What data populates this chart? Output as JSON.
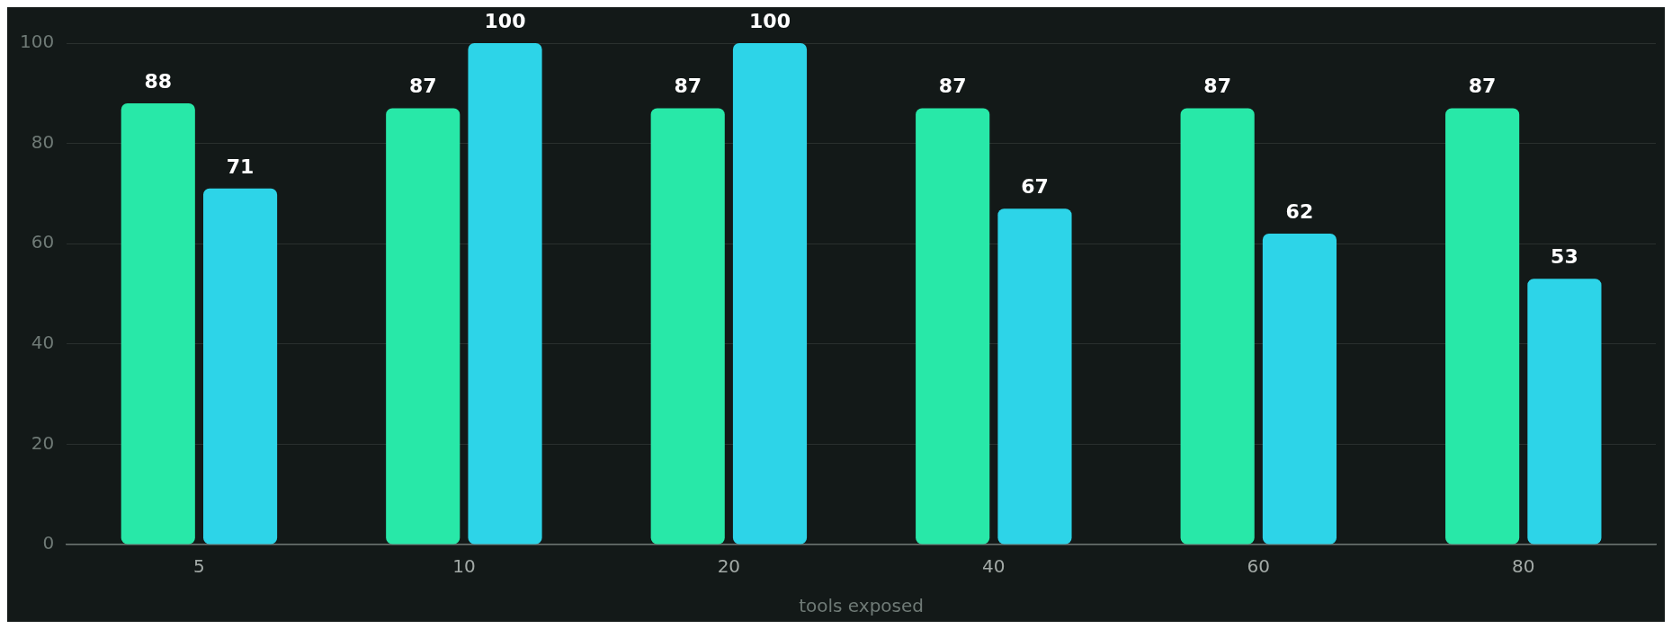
{
  "chart_data": {
    "type": "bar",
    "xlabel": "tools exposed",
    "categories": [
      "5",
      "10",
      "20",
      "40",
      "60",
      "80"
    ],
    "series": [
      {
        "color": "#28e8a8",
        "values": [
          88,
          87,
          87,
          87,
          87,
          87
        ]
      },
      {
        "color": "#2dd4e8",
        "values": [
          71,
          100,
          100,
          67,
          62,
          53
        ]
      }
    ],
    "ylim": [
      0,
      100
    ],
    "yticks": [
      0,
      20,
      40,
      60,
      80,
      100
    ],
    "grid": "y",
    "legend": false,
    "data_labels": true
  }
}
